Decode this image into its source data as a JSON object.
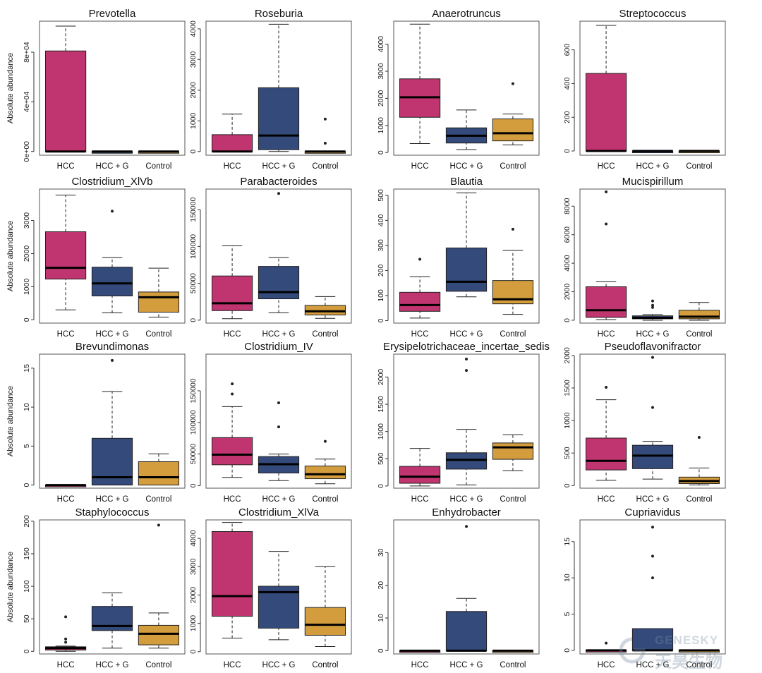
{
  "colors": {
    "HCC": "#c0346f",
    "HCC + G": "#344a7b",
    "Control": "#d39c3c"
  },
  "watermark": {
    "en": "GENESKY",
    "cn": "天昊生物"
  },
  "chart_data": [
    {
      "type": "box",
      "title": "Prevotella",
      "ylabel": "Absolute abundance",
      "ylim": [
        -3000,
        105000
      ],
      "yticks": [
        0,
        40000,
        80000
      ],
      "yticklabels": [
        "0e+00",
        "4e+04",
        "8e+04"
      ],
      "categories": [
        "HCC",
        "HCC + G",
        "Control"
      ],
      "boxes": [
        {
          "min": 0,
          "q1": 0,
          "median": 0,
          "q3": 81000,
          "max": 101000,
          "outliers": []
        },
        {
          "min": 0,
          "q1": 0,
          "median": 0,
          "q3": 0,
          "max": 0,
          "outliers": []
        },
        {
          "min": 0,
          "q1": 0,
          "median": 0,
          "q3": 0,
          "max": 0,
          "outliers": []
        }
      ]
    },
    {
      "type": "box",
      "title": "Roseburia",
      "ylabel": "",
      "ylim": [
        -120,
        4250
      ],
      "yticks": [
        0,
        1000,
        2000,
        3000,
        4000
      ],
      "yticklabels": [
        "0",
        "1000",
        "2000",
        "3000",
        "4000"
      ],
      "categories": [
        "HCC",
        "HCC + G",
        "Control"
      ],
      "boxes": [
        {
          "min": 0,
          "q1": 0,
          "median": 0,
          "q3": 550,
          "max": 1220,
          "outliers": []
        },
        {
          "min": 0,
          "q1": 60,
          "median": 520,
          "q3": 2080,
          "max": 4150,
          "outliers": []
        },
        {
          "min": 0,
          "q1": 0,
          "median": 0,
          "q3": 0,
          "max": 0,
          "outliers": [
            1060,
            270
          ]
        }
      ]
    },
    {
      "type": "box",
      "title": "Anaerotruncus",
      "ylabel": "",
      "ylim": [
        -100,
        4850
      ],
      "yticks": [
        0,
        1000,
        2000,
        3000,
        4000
      ],
      "yticklabels": [
        "0",
        "1000",
        "2000",
        "3000",
        "4000"
      ],
      "categories": [
        "HCC",
        "HCC + G",
        "Control"
      ],
      "boxes": [
        {
          "min": 330,
          "q1": 1300,
          "median": 2040,
          "q3": 2720,
          "max": 4740,
          "outliers": []
        },
        {
          "min": 110,
          "q1": 350,
          "median": 620,
          "q3": 910,
          "max": 1570,
          "outliers": []
        },
        {
          "min": 280,
          "q1": 430,
          "median": 710,
          "q3": 1240,
          "max": 1420,
          "outliers": [
            2540
          ]
        }
      ]
    },
    {
      "type": "box",
      "title": "Streptococcus",
      "ylabel": "",
      "ylim": [
        -25,
        770
      ],
      "yticks": [
        0,
        200,
        400,
        600
      ],
      "yticklabels": [
        "0",
        "200",
        "400",
        "600"
      ],
      "categories": [
        "HCC",
        "HCC + G",
        "Control"
      ],
      "boxes": [
        {
          "min": 0,
          "q1": 0,
          "median": 0,
          "q3": 460,
          "max": 745,
          "outliers": []
        },
        {
          "min": 0,
          "q1": 0,
          "median": 0,
          "q3": 0,
          "max": 0,
          "outliers": []
        },
        {
          "min": 0,
          "q1": 0,
          "median": 0,
          "q3": 0,
          "max": 0,
          "outliers": []
        }
      ]
    },
    {
      "type": "box",
      "title": "Clostridium_XlVb",
      "ylabel": "Absolute abundance",
      "ylim": [
        -100,
        3950
      ],
      "yticks": [
        0,
        1000,
        2000,
        3000
      ],
      "yticklabels": [
        "0",
        "1000",
        "2000",
        "3000"
      ],
      "categories": [
        "HCC",
        "HCC + G",
        "Control"
      ],
      "boxes": [
        {
          "min": 300,
          "q1": 1230,
          "median": 1570,
          "q3": 2660,
          "max": 3770,
          "outliers": []
        },
        {
          "min": 210,
          "q1": 720,
          "median": 1100,
          "q3": 1590,
          "max": 1880,
          "outliers": [
            3280
          ]
        },
        {
          "min": 80,
          "q1": 230,
          "median": 680,
          "q3": 840,
          "max": 1560,
          "outliers": []
        }
      ]
    },
    {
      "type": "box",
      "title": "Parabacteroides",
      "ylabel": "",
      "ylim": [
        -4000,
        178000
      ],
      "yticks": [
        0,
        50000,
        100000,
        150000
      ],
      "yticklabels": [
        "0",
        "50000",
        "100000",
        "150000"
      ],
      "categories": [
        "HCC",
        "HCC + G",
        "Control"
      ],
      "boxes": [
        {
          "min": 2000,
          "q1": 13000,
          "median": 23000,
          "q3": 60000,
          "max": 101000,
          "outliers": []
        },
        {
          "min": 10000,
          "q1": 29000,
          "median": 38000,
          "q3": 73000,
          "max": 85000,
          "outliers": [
            172000
          ]
        },
        {
          "min": 2500,
          "q1": 7000,
          "median": 12000,
          "q3": 20000,
          "max": 32000,
          "outliers": []
        }
      ]
    },
    {
      "type": "box",
      "title": "Blautia",
      "ylabel": "",
      "ylim": [
        -10,
        525
      ],
      "yticks": [
        0,
        100,
        200,
        300,
        400,
        500
      ],
      "yticklabels": [
        "0",
        "100",
        "200",
        "300",
        "400",
        "500"
      ],
      "categories": [
        "HCC",
        "HCC + G",
        "Control"
      ],
      "boxes": [
        {
          "min": 10,
          "q1": 37,
          "median": 62,
          "q3": 113,
          "max": 175,
          "outliers": [
            245
          ]
        },
        {
          "min": 95,
          "q1": 117,
          "median": 155,
          "q3": 290,
          "max": 510,
          "outliers": []
        },
        {
          "min": 25,
          "q1": 67,
          "median": 85,
          "q3": 160,
          "max": 280,
          "outliers": [
            365
          ]
        }
      ]
    },
    {
      "type": "box",
      "title": "Mucispirillum",
      "ylabel": "",
      "ylim": [
        -200,
        9200
      ],
      "yticks": [
        0,
        2000,
        4000,
        6000,
        8000
      ],
      "yticklabels": [
        "0",
        "2000",
        "4000",
        "6000",
        "8000"
      ],
      "categories": [
        "HCC",
        "HCC + G",
        "Control"
      ],
      "boxes": [
        {
          "min": 50,
          "q1": 200,
          "median": 700,
          "q3": 2350,
          "max": 2700,
          "outliers": [
            6750,
            9000
          ]
        },
        {
          "min": 0,
          "q1": 100,
          "median": 170,
          "q3": 310,
          "max": 400,
          "outliers": [
            1350,
            1050,
            900
          ]
        },
        {
          "min": 0,
          "q1": 100,
          "median": 250,
          "q3": 700,
          "max": 1250,
          "outliers": []
        }
      ]
    },
    {
      "type": "box",
      "title": "Brevundimonas",
      "ylabel": "Absolute abundance",
      "ylim": [
        -0.4,
        16.8
      ],
      "yticks": [
        0,
        5,
        10,
        15
      ],
      "yticklabels": [
        "0",
        "5",
        "10",
        "15"
      ],
      "categories": [
        "HCC",
        "HCC + G",
        "Control"
      ],
      "boxes": [
        {
          "min": 0,
          "q1": 0,
          "median": 0,
          "q3": 0,
          "max": 0,
          "outliers": []
        },
        {
          "min": 0,
          "q1": 0,
          "median": 1,
          "q3": 6,
          "max": 12,
          "outliers": [
            16
          ]
        },
        {
          "min": 0,
          "q1": 0,
          "median": 1,
          "q3": 3,
          "max": 4,
          "outliers": []
        }
      ]
    },
    {
      "type": "box",
      "title": "Clostridium_IV",
      "ylabel": "",
      "ylim": [
        -4000,
        208000
      ],
      "yticks": [
        0,
        50000,
        100000,
        150000
      ],
      "yticklabels": [
        "0",
        "50000",
        "100000",
        "150000"
      ],
      "categories": [
        "HCC",
        "HCC + G",
        "Control"
      ],
      "boxes": [
        {
          "min": 13000,
          "q1": 33000,
          "median": 49000,
          "q3": 76000,
          "max": 125000,
          "outliers": [
            145000,
            161000
          ]
        },
        {
          "min": 8000,
          "q1": 20000,
          "median": 34000,
          "q3": 46000,
          "max": 50000,
          "outliers": [
            93000,
            131000
          ]
        },
        {
          "min": 3000,
          "q1": 11000,
          "median": 18000,
          "q3": 31000,
          "max": 42000,
          "outliers": [
            70000
          ]
        }
      ]
    },
    {
      "type": "box",
      "title": "Erysipelotrichaceae_incertae_sedis",
      "ylabel": "",
      "ylim": [
        -40,
        2420
      ],
      "yticks": [
        0,
        500,
        1000,
        1500,
        2000
      ],
      "yticklabels": [
        "0",
        "500",
        "1000",
        "1500",
        "2000"
      ],
      "categories": [
        "HCC",
        "HCC + G",
        "Control"
      ],
      "boxes": [
        {
          "min": 0,
          "q1": 50,
          "median": 170,
          "q3": 360,
          "max": 690,
          "outliers": []
        },
        {
          "min": 20,
          "q1": 310,
          "median": 480,
          "q3": 610,
          "max": 1040,
          "outliers": [
            2120,
            2330
          ]
        },
        {
          "min": 280,
          "q1": 490,
          "median": 710,
          "q3": 790,
          "max": 940,
          "outliers": []
        }
      ]
    },
    {
      "type": "box",
      "title": "Pseudoflavonifractor",
      "ylabel": "",
      "ylim": [
        -40,
        2020
      ],
      "yticks": [
        0,
        500,
        1000,
        1500,
        2000
      ],
      "yticklabels": [
        "0",
        "500",
        "1000",
        "1500",
        "2000"
      ],
      "categories": [
        "HCC",
        "HCC + G",
        "Control"
      ],
      "boxes": [
        {
          "min": 80,
          "q1": 240,
          "median": 380,
          "q3": 730,
          "max": 1320,
          "outliers": [
            1510
          ]
        },
        {
          "min": 100,
          "q1": 260,
          "median": 460,
          "q3": 620,
          "max": 680,
          "outliers": [
            1200,
            1970
          ]
        },
        {
          "min": 10,
          "q1": 30,
          "median": 70,
          "q3": 130,
          "max": 270,
          "outliers": [
            740
          ]
        }
      ]
    },
    {
      "type": "box",
      "title": "Staphylococcus",
      "ylabel": "Absolute abundance",
      "ylim": [
        -4,
        202
      ],
      "yticks": [
        0,
        50,
        100,
        150,
        200
      ],
      "yticklabels": [
        "0",
        "50",
        "100",
        "150",
        "200"
      ],
      "categories": [
        "HCC",
        "HCC + G",
        "Control"
      ],
      "boxes": [
        {
          "min": 0,
          "q1": 2,
          "median": 5,
          "q3": 7,
          "max": 8,
          "outliers": [
            14,
            19,
            53
          ]
        },
        {
          "min": 5,
          "q1": 32,
          "median": 39,
          "q3": 69,
          "max": 90,
          "outliers": []
        },
        {
          "min": 5,
          "q1": 10,
          "median": 27,
          "q3": 40,
          "max": 59,
          "outliers": [
            194
          ]
        }
      ]
    },
    {
      "type": "box",
      "title": "Clostridium_XlVa",
      "ylabel": "",
      "ylim": [
        -80,
        4650
      ],
      "yticks": [
        0,
        1000,
        2000,
        3000,
        4000
      ],
      "yticklabels": [
        "0",
        "1000",
        "2000",
        "3000",
        "4000"
      ],
      "categories": [
        "HCC",
        "HCC + G",
        "Control"
      ],
      "boxes": [
        {
          "min": 480,
          "q1": 1250,
          "median": 1960,
          "q3": 4240,
          "max": 4560,
          "outliers": []
        },
        {
          "min": 420,
          "q1": 830,
          "median": 2100,
          "q3": 2310,
          "max": 3540,
          "outliers": []
        },
        {
          "min": 180,
          "q1": 580,
          "median": 950,
          "q3": 1560,
          "max": 3000,
          "outliers": []
        }
      ]
    },
    {
      "type": "box",
      "title": "Enhydrobacter",
      "ylabel": "",
      "ylim": [
        -1,
        40
      ],
      "yticks": [
        0,
        10,
        20,
        30
      ],
      "yticklabels": [
        "0",
        "10",
        "20",
        "30"
      ],
      "categories": [
        "HCC",
        "HCC + G",
        "Control"
      ],
      "boxes": [
        {
          "min": 0,
          "q1": 0,
          "median": 0,
          "q3": 0,
          "max": 0,
          "outliers": []
        },
        {
          "min": 0,
          "q1": 0,
          "median": 0,
          "q3": 12,
          "max": 16,
          "outliers": [
            38
          ]
        },
        {
          "min": 0,
          "q1": 0,
          "median": 0,
          "q3": 0,
          "max": 0,
          "outliers": []
        }
      ]
    },
    {
      "type": "box",
      "title": "Cupriavidus",
      "ylabel": "",
      "ylim": [
        -0.5,
        18
      ],
      "yticks": [
        0,
        5,
        10,
        15
      ],
      "yticklabels": [
        "0",
        "5",
        "10",
        "15"
      ],
      "categories": [
        "HCC",
        "HCC + G",
        "Control"
      ],
      "boxes": [
        {
          "min": 0,
          "q1": 0,
          "median": 0,
          "q3": 0,
          "max": 0,
          "outliers": [
            1
          ]
        },
        {
          "min": 0,
          "q1": 0,
          "median": 0,
          "q3": 3,
          "max": 3,
          "outliers": [
            10,
            13,
            17
          ]
        },
        {
          "min": 0,
          "q1": 0,
          "median": 0,
          "q3": 0,
          "max": 0,
          "outliers": []
        }
      ]
    }
  ]
}
